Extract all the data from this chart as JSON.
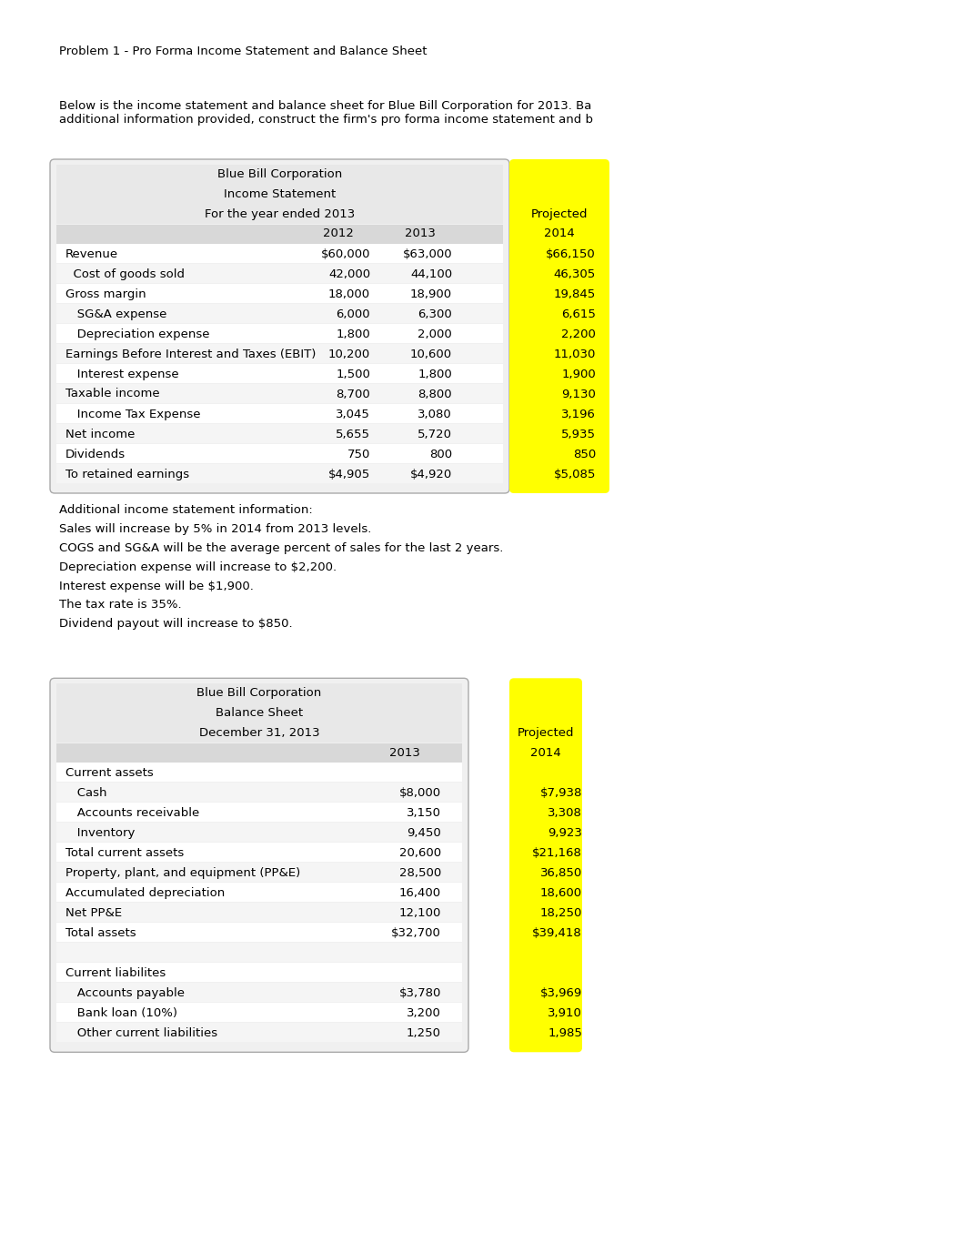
{
  "title": "Problem 1 - Pro Forma Income Statement and Balance Sheet",
  "intro_text": "Below is the income statement and balance sheet for Blue Bill Corporation for 2013. Ba\nadditional information provided, construct the firm's pro forma income statement and b",
  "is_title1": "Blue Bill Corporation",
  "is_title2": "Income Statement",
  "is_title3": "For the year ended 2013",
  "is_rows": [
    {
      "label": "Revenue",
      "indent": 0,
      "v2012": "$60,000",
      "v2013": "$63,000",
      "v2014": "$66,150"
    },
    {
      "label": "  Cost of goods sold",
      "indent": 1,
      "v2012": "42,000",
      "v2013": "44,100",
      "v2014": "46,305"
    },
    {
      "label": "Gross margin",
      "indent": 0,
      "v2012": "18,000",
      "v2013": "18,900",
      "v2014": "19,845"
    },
    {
      "label": "   SG&A expense",
      "indent": 2,
      "v2012": "6,000",
      "v2013": "6,300",
      "v2014": "6,615"
    },
    {
      "label": "   Depreciation expense",
      "indent": 2,
      "v2012": "1,800",
      "v2013": "2,000",
      "v2014": "2,200"
    },
    {
      "label": "Earnings Before Interest and Taxes (EBIT)",
      "indent": 0,
      "v2012": "10,200",
      "v2013": "10,600",
      "v2014": "11,030"
    },
    {
      "label": "   Interest expense",
      "indent": 2,
      "v2012": "1,500",
      "v2013": "1,800",
      "v2014": "1,900"
    },
    {
      "label": "Taxable income",
      "indent": 0,
      "v2012": "8,700",
      "v2013": "8,800",
      "v2014": "9,130"
    },
    {
      "label": "   Income Tax Expense",
      "indent": 2,
      "v2012": "3,045",
      "v2013": "3,080",
      "v2014": "3,196"
    },
    {
      "label": "Net income",
      "indent": 0,
      "v2012": "5,655",
      "v2013": "5,720",
      "v2014": "5,935"
    },
    {
      "label": "Dividends",
      "indent": 0,
      "v2012": "750",
      "v2013": "800",
      "v2014": "850"
    },
    {
      "label": "To retained earnings",
      "indent": 0,
      "v2012": "$4,905",
      "v2013": "$4,920",
      "v2014": "$5,085"
    }
  ],
  "is_notes": [
    "Additional income statement information:",
    "Sales will increase by 5% in 2014 from 2013 levels.",
    "COGS and SG&A will be the average percent of sales for the last 2 years.",
    "Depreciation expense will increase to $2,200.",
    "Interest expense will be $1,900.",
    "The tax rate is 35%.",
    "Dividend payout will increase to $850."
  ],
  "bs_title1": "Blue Bill Corporation",
  "bs_title2": "Balance Sheet",
  "bs_title3": "December 31, 2013",
  "bs_rows": [
    {
      "label": "Current assets",
      "indent": 0,
      "v2013": "",
      "v2014": "",
      "bold": true
    },
    {
      "label": "   Cash",
      "indent": 2,
      "v2013": "$8,000",
      "v2014": "$7,938",
      "bold": false
    },
    {
      "label": "   Accounts receivable",
      "indent": 2,
      "v2013": "3,150",
      "v2014": "3,308",
      "bold": false
    },
    {
      "label": "   Inventory",
      "indent": 2,
      "v2013": "9,450",
      "v2014": "9,923",
      "bold": false
    },
    {
      "label": "Total current assets",
      "indent": 0,
      "v2013": "20,600",
      "v2014": "$21,168",
      "bold": false
    },
    {
      "label": "Property, plant, and equipment (PP&E)",
      "indent": 0,
      "v2013": "28,500",
      "v2014": "36,850",
      "bold": false
    },
    {
      "label": "Accumulated depreciation",
      "indent": 0,
      "v2013": "16,400",
      "v2014": "18,600",
      "bold": false
    },
    {
      "label": "Net PP&E",
      "indent": 0,
      "v2013": "12,100",
      "v2014": "18,250",
      "bold": false
    },
    {
      "label": "Total assets",
      "indent": 0,
      "v2013": "$32,700",
      "v2014": "$39,418",
      "bold": false
    },
    {
      "label": "",
      "indent": 0,
      "v2013": "",
      "v2014": "",
      "bold": false
    },
    {
      "label": "Current liabilites",
      "indent": 0,
      "v2013": "",
      "v2014": "",
      "bold": false
    },
    {
      "label": "   Accounts payable",
      "indent": 2,
      "v2013": "$3,780",
      "v2014": "$3,969",
      "bold": false
    },
    {
      "label": "   Bank loan (10%)",
      "indent": 2,
      "v2013": "3,200",
      "v2014": "3,910",
      "bold": false
    },
    {
      "label": "   Other current liabilities",
      "indent": 2,
      "v2013": "1,250",
      "v2014": "1,985",
      "bold": false
    }
  ],
  "yellow_color": "#FFFF00",
  "font_size": 9.5
}
